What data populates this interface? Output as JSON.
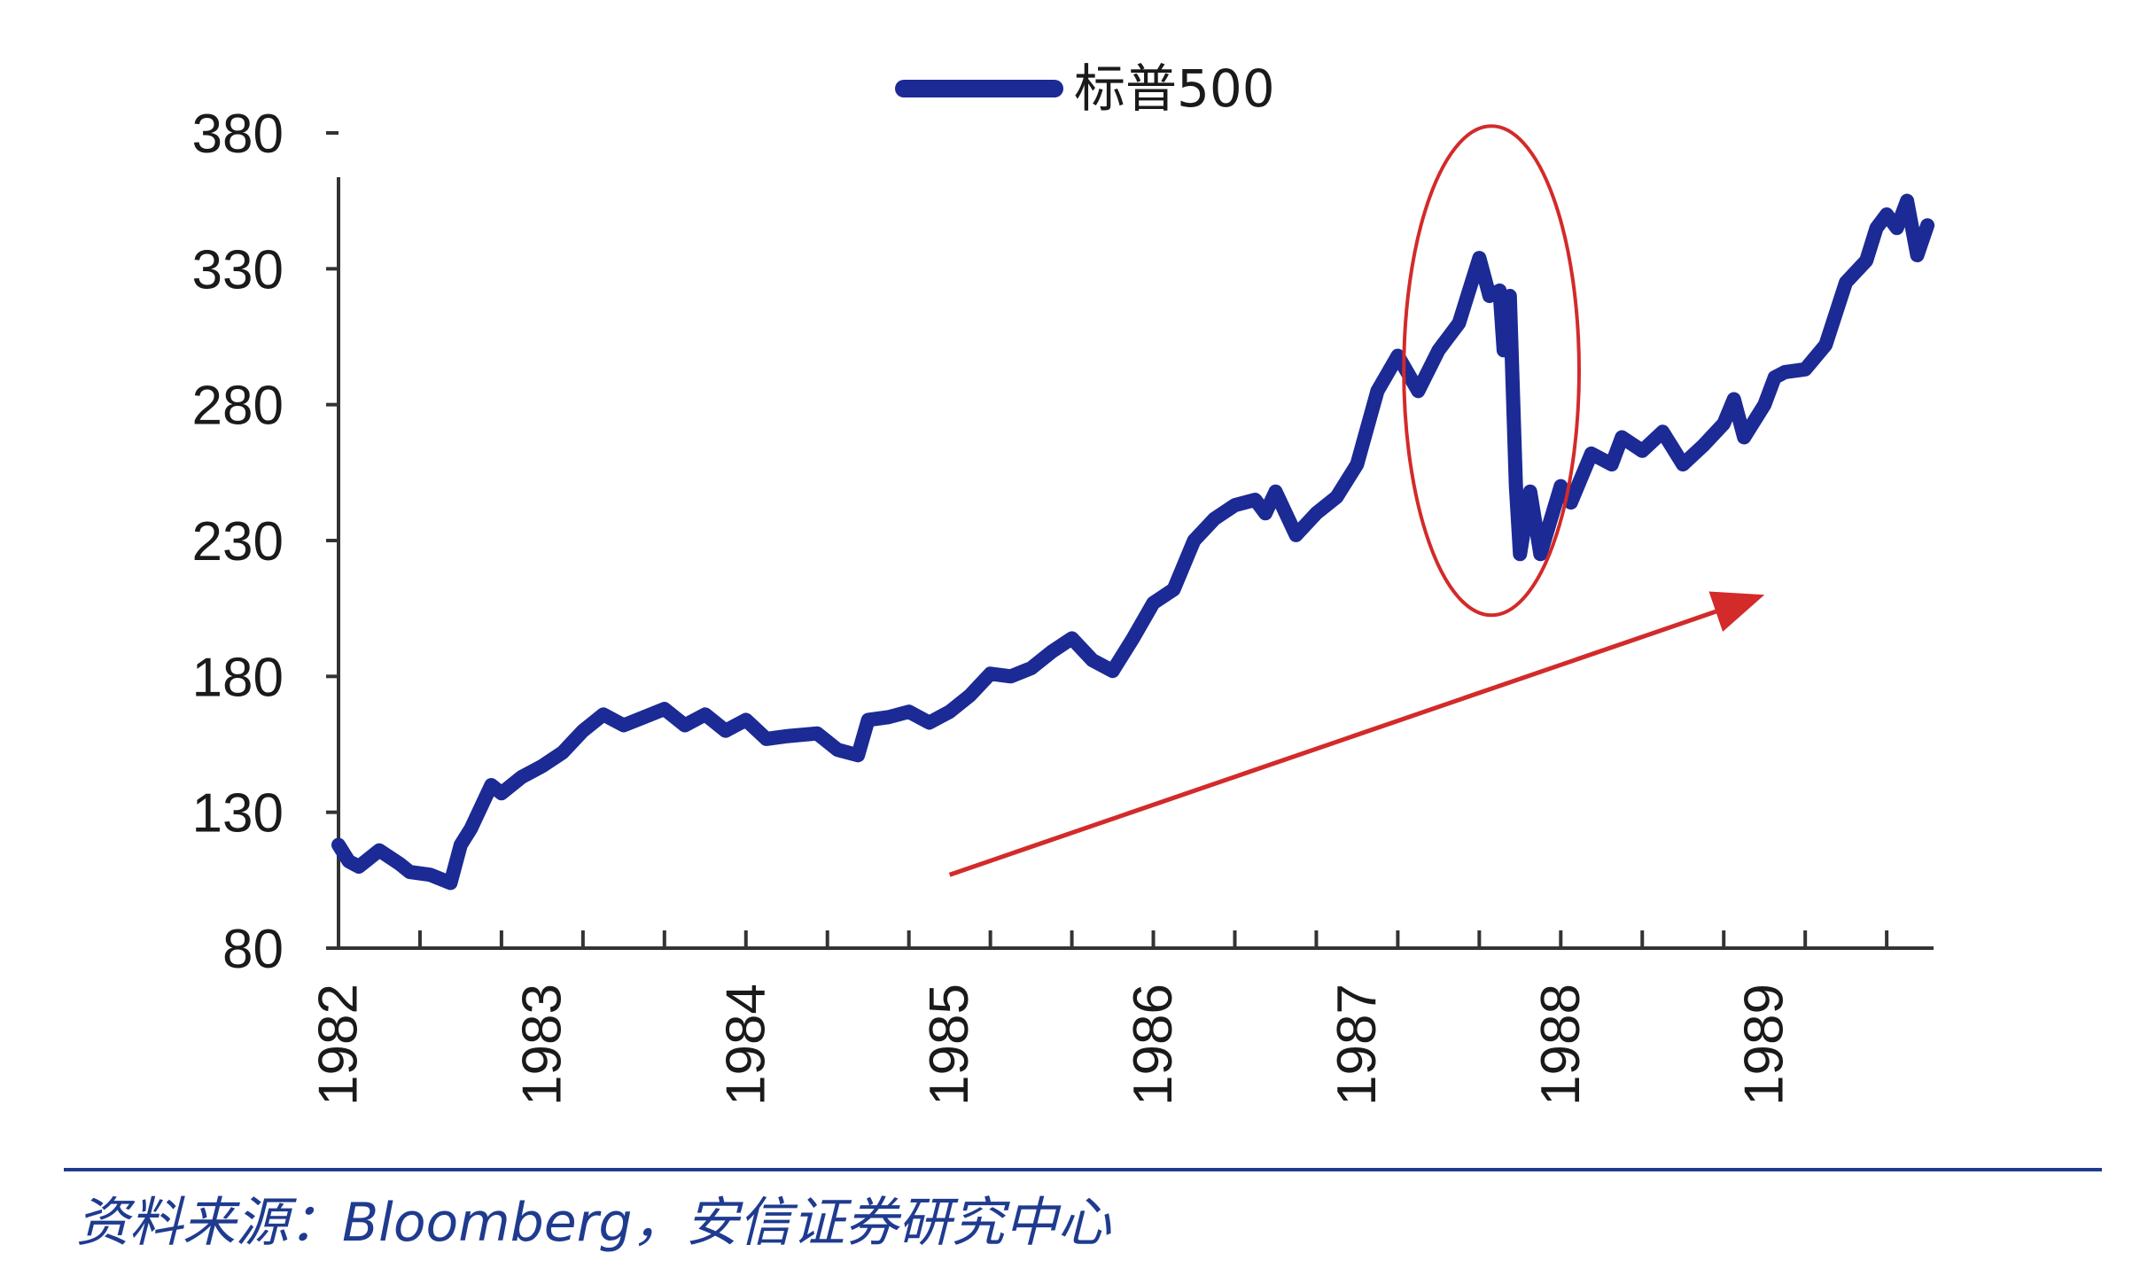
{
  "colors": {
    "series": "#1b2a94",
    "annotation": "#d32a2a",
    "axis": "#333333",
    "source_rule": "#1f3b8f",
    "source_text": "#1f3b8f"
  },
  "legend": {
    "label": "标普500"
  },
  "source": {
    "text": "资料来源：Bloomberg，安信证券研究中心"
  },
  "chart_data": {
    "type": "line",
    "title": "",
    "xlabel": "",
    "ylabel": "",
    "ylim": [
      80,
      380
    ],
    "xlim": [
      1982.0,
      1989.83
    ],
    "y_ticks": [
      80,
      130,
      180,
      230,
      280,
      330,
      380
    ],
    "x_tick_labels": [
      "1982",
      "1983",
      "1984",
      "1985",
      "1986",
      "1987",
      "1988",
      "1989"
    ],
    "x_tick_positions": [
      1982.0,
      1983.0,
      1984.0,
      1985.0,
      1986.0,
      1987.0,
      1988.0,
      1989.0
    ],
    "minor_x_ticks": [
      1982.0,
      1982.4,
      1982.8,
      1983.2,
      1983.6,
      1984.0,
      1984.4,
      1984.8,
      1985.2,
      1985.6,
      1986.0,
      1986.4,
      1986.8,
      1987.2,
      1987.6,
      1988.0,
      1988.4,
      1988.8,
      1989.2,
      1989.6
    ],
    "grid": false,
    "legend_position": "top-center",
    "series": [
      {
        "name": "标普500",
        "x": [
          1982.0,
          1982.05,
          1982.1,
          1982.2,
          1982.3,
          1982.35,
          1982.45,
          1982.55,
          1982.6,
          1982.65,
          1982.75,
          1982.8,
          1982.85,
          1982.9,
          1982.95,
          1983.0,
          1983.1,
          1983.2,
          1983.3,
          1983.4,
          1983.5,
          1983.6,
          1983.7,
          1983.8,
          1983.9,
          1984.0,
          1984.1,
          1984.2,
          1984.35,
          1984.45,
          1984.55,
          1984.6,
          1984.7,
          1984.8,
          1984.9,
          1985.0,
          1985.1,
          1985.2,
          1985.3,
          1985.4,
          1985.5,
          1985.6,
          1985.7,
          1985.8,
          1985.9,
          1986.0,
          1986.1,
          1986.2,
          1986.3,
          1986.4,
          1986.5,
          1986.55,
          1986.6,
          1986.7,
          1986.8,
          1986.9,
          1987.0,
          1987.1,
          1987.2,
          1987.3,
          1987.4,
          1987.45,
          1987.5,
          1987.55,
          1987.6,
          1987.65,
          1987.7,
          1987.72,
          1987.75,
          1987.78,
          1987.8,
          1987.85,
          1987.9,
          1988.0,
          1988.05,
          1988.15,
          1988.25,
          1988.3,
          1988.4,
          1988.5,
          1988.6,
          1988.7,
          1988.8,
          1988.85,
          1988.9,
          1989.0,
          1989.05,
          1989.1,
          1989.2,
          1989.3,
          1989.4,
          1989.5,
          1989.55,
          1989.6,
          1989.65,
          1989.7,
          1989.75,
          1989.8
        ],
        "values": [
          118,
          112,
          110,
          116,
          111,
          108,
          107,
          104,
          118,
          124,
          140,
          137,
          140,
          143,
          145,
          147,
          152,
          160,
          166,
          162,
          165,
          168,
          162,
          166,
          160,
          164,
          157,
          158,
          159,
          153,
          151,
          164,
          165,
          167,
          163,
          167,
          173,
          181,
          180,
          183,
          189,
          194,
          186,
          182,
          194,
          207,
          212,
          230,
          238,
          243,
          245,
          240,
          248,
          232,
          240,
          246,
          258,
          285,
          298,
          285,
          300,
          305,
          310,
          322,
          334,
          320,
          322,
          300,
          320,
          250,
          225,
          248,
          225,
          250,
          244,
          262,
          258,
          268,
          263,
          270,
          258,
          265,
          273,
          282,
          268,
          280,
          290,
          292,
          293,
          302,
          325,
          333,
          345,
          350,
          345,
          355,
          335,
          346
        ]
      }
    ],
    "annotations": {
      "ellipse": {
        "x_center": 1987.66,
        "y_center": 292.5,
        "x_radius": 0.43,
        "y_radius": 90
      },
      "arrow": {
        "x_start": 1985.0,
        "y_start": 107,
        "x_end": 1989.0,
        "y_end": 210
      }
    }
  }
}
